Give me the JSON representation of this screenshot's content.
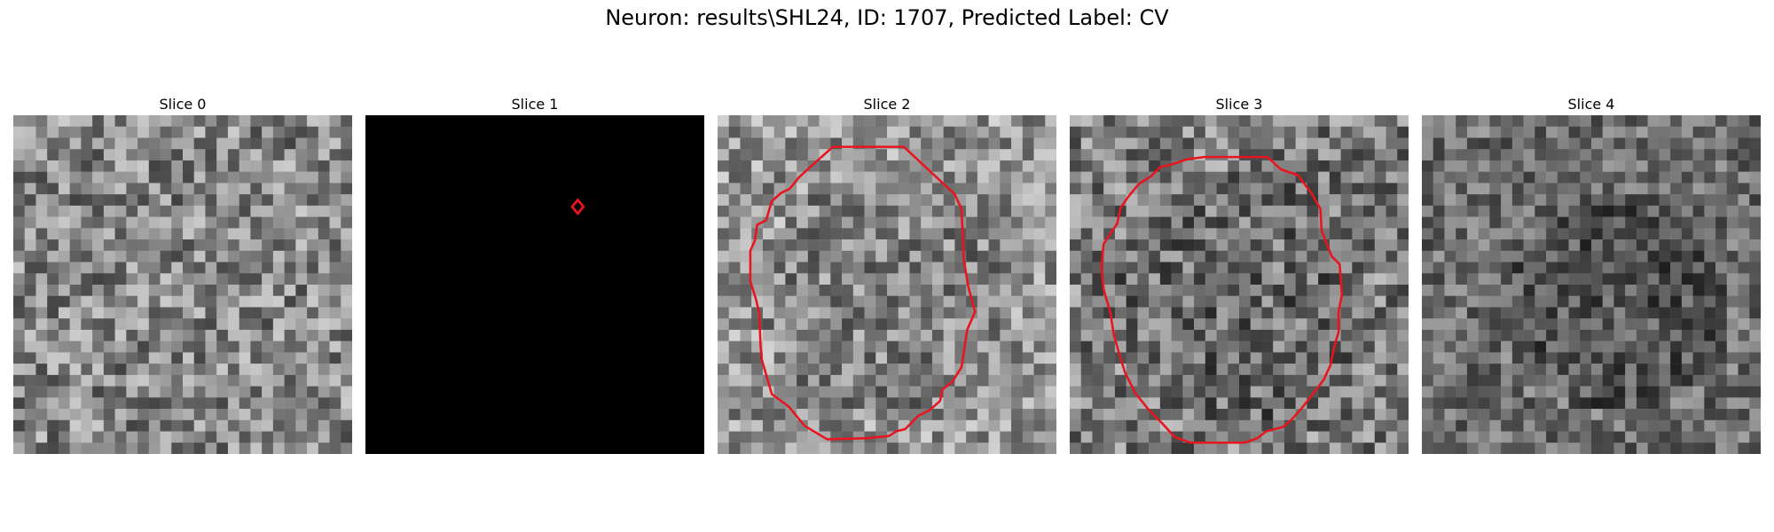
{
  "figure": {
    "title": "Neuron: results\\SHL24, ID: 1707, Predicted Label: CV"
  },
  "panels": [
    {
      "title": "Slice 0",
      "image": "noise-grayscale",
      "overlay": "none",
      "seed": 11,
      "mean": 135,
      "spread": 140
    },
    {
      "title": "Slice 1",
      "image": "black",
      "overlay": "small-diamond-contour",
      "seed": 0,
      "mean": 0,
      "spread": 0
    },
    {
      "title": "Slice 2",
      "image": "noise-grayscale",
      "overlay": "cell-contour",
      "seed": 23,
      "mean": 150,
      "spread": 130
    },
    {
      "title": "Slice 3",
      "image": "noise-grayscale",
      "overlay": "cell-contour",
      "seed": 37,
      "mean": 125,
      "spread": 140
    },
    {
      "title": "Slice 4",
      "image": "noise-grayscale",
      "overlay": "none",
      "seed": 51,
      "mean": 110,
      "spread": 110
    }
  ],
  "contour_color": "#e8141e"
}
